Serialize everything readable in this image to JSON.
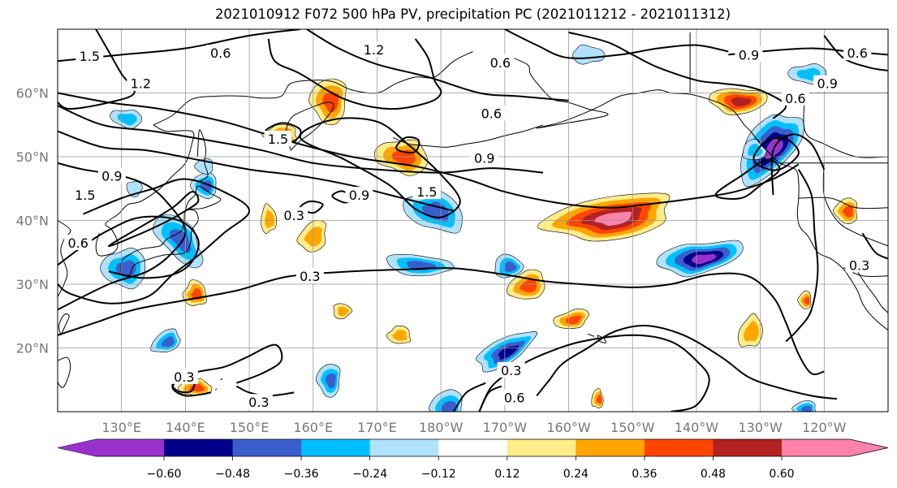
{
  "title": "2021010912 F072 500 hPa PV, precipitation PC (2021011212 - 2021011312)",
  "lat_labels": [
    {
      "text": "60°N",
      "lat": 60
    },
    {
      "text": "50°N",
      "lat": 50
    },
    {
      "text": "40°N",
      "lat": 40
    },
    {
      "text": "30°N",
      "lat": 30
    },
    {
      "text": "20°N",
      "lat": 20
    }
  ],
  "lon_labels": [
    {
      "text": "130°E",
      "lon": 130
    },
    {
      "text": "140°E",
      "lon": 140
    },
    {
      "text": "150°E",
      "lon": 150
    },
    {
      "text": "160°E",
      "lon": 160
    },
    {
      "text": "170°E",
      "lon": 170
    },
    {
      "text": "180°W",
      "lon": 180
    },
    {
      "text": "170°W",
      "lon": 190
    },
    {
      "text": "160°W",
      "lon": 200
    },
    {
      "text": "150°W",
      "lon": 210
    },
    {
      "text": "140°W",
      "lon": 220
    },
    {
      "text": "130°W",
      "lon": 230
    },
    {
      "text": "120°W",
      "lon": 240
    }
  ],
  "extent": {
    "lon_min": 120,
    "lon_max": 250,
    "lat_min": 10,
    "lat_max": 70
  },
  "contour_labels": [
    {
      "text": "1.5",
      "lon": 125.0,
      "lat": 65.8
    },
    {
      "text": "0.6",
      "lon": 145.5,
      "lat": 66.3
    },
    {
      "text": "1.2",
      "lon": 169.5,
      "lat": 66.8
    },
    {
      "text": "0.6",
      "lon": 189.3,
      "lat": 64.8
    },
    {
      "text": "0.9",
      "lon": 228.2,
      "lat": 66.0
    },
    {
      "text": "0.6",
      "lon": 245.2,
      "lat": 66.3
    },
    {
      "text": "1.2",
      "lon": 133.0,
      "lat": 61.5
    },
    {
      "text": "0.9",
      "lon": 240.5,
      "lat": 61.5
    },
    {
      "text": "0.6",
      "lon": 235.5,
      "lat": 59.2
    },
    {
      "text": "0.6",
      "lon": 187.9,
      "lat": 56.8
    },
    {
      "text": "1.5",
      "lon": 154.5,
      "lat": 52.8
    },
    {
      "text": "0.9",
      "lon": 186.8,
      "lat": 49.8
    },
    {
      "text": "0.9",
      "lon": 128.5,
      "lat": 47.0
    },
    {
      "text": "1.5",
      "lon": 124.3,
      "lat": 44.0
    },
    {
      "text": "0.9",
      "lon": 167.2,
      "lat": 44.0
    },
    {
      "text": "1.5",
      "lon": 177.8,
      "lat": 44.5
    },
    {
      "text": "0.3",
      "lon": 157.0,
      "lat": 40.8
    },
    {
      "text": "0.6",
      "lon": 123.2,
      "lat": 36.5
    },
    {
      "text": "0.3",
      "lon": 159.5,
      "lat": 31.3
    },
    {
      "text": "0.3",
      "lon": 245.5,
      "lat": 33.0
    },
    {
      "text": "0.3",
      "lon": 139.8,
      "lat": 15.5
    },
    {
      "text": "0.3",
      "lon": 191.0,
      "lat": 16.5
    },
    {
      "text": "0.3",
      "lon": 151.5,
      "lat": 11.5
    },
    {
      "text": "0.6",
      "lon": 191.5,
      "lat": 12.2
    }
  ],
  "colorbar": {
    "ticks": [
      "−0.60",
      "−0.48",
      "−0.36",
      "−0.24",
      "−0.12",
      "0.12",
      "0.24",
      "0.36",
      "0.48",
      "0.60"
    ],
    "colors": [
      "#9932cc",
      "#00008b",
      "#3a5fcd",
      "#00bfff",
      "#b0e2ff",
      "#ffffff",
      "#ffec8b",
      "#ffa500",
      "#ff4500",
      "#b22222",
      "#ff82ab"
    ]
  }
}
